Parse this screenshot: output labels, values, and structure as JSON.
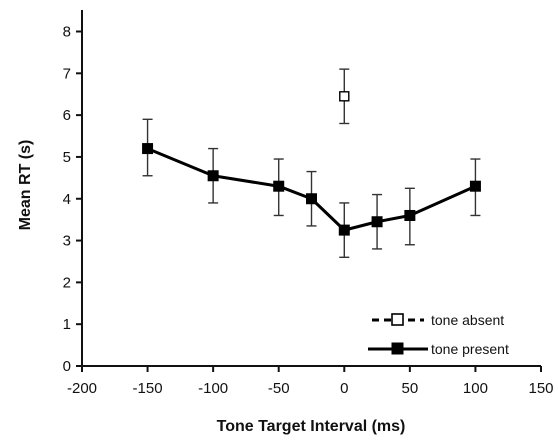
{
  "chart_data": {
    "type": "line",
    "title": "",
    "xlabel": "Tone Target Interval (ms)",
    "ylabel": "Mean RT (s)",
    "xlim": [
      -200,
      150
    ],
    "ylim": [
      0,
      8
    ],
    "x_ticks": [
      -200,
      -150,
      -100,
      -50,
      0,
      50,
      100,
      150
    ],
    "y_ticks": [
      0,
      1,
      2,
      3,
      4,
      5,
      6,
      7,
      8
    ],
    "grid": false,
    "legend_position": "bottom-right",
    "series": [
      {
        "name": "tone absent",
        "marker": "open-square",
        "line_style": "dashed",
        "color": "#000000",
        "points": [
          {
            "x": 0,
            "y": 6.45,
            "err_low": 5.8,
            "err_high": 7.1
          }
        ]
      },
      {
        "name": "tone present",
        "marker": "filled-square",
        "line_style": "solid",
        "color": "#000000",
        "points": [
          {
            "x": -150,
            "y": 5.2,
            "err_low": 4.55,
            "err_high": 5.9
          },
          {
            "x": -100,
            "y": 4.55,
            "err_low": 3.9,
            "err_high": 5.2
          },
          {
            "x": -50,
            "y": 4.3,
            "err_low": 3.6,
            "err_high": 4.95
          },
          {
            "x": -25,
            "y": 4.0,
            "err_low": 3.35,
            "err_high": 4.65
          },
          {
            "x": 0,
            "y": 3.25,
            "err_low": 2.6,
            "err_high": 3.9
          },
          {
            "x": 25,
            "y": 3.45,
            "err_low": 2.8,
            "err_high": 4.1
          },
          {
            "x": 50,
            "y": 3.6,
            "err_low": 2.9,
            "err_high": 4.25
          },
          {
            "x": 100,
            "y": 4.3,
            "err_low": 3.6,
            "err_high": 4.95
          }
        ]
      }
    ]
  }
}
